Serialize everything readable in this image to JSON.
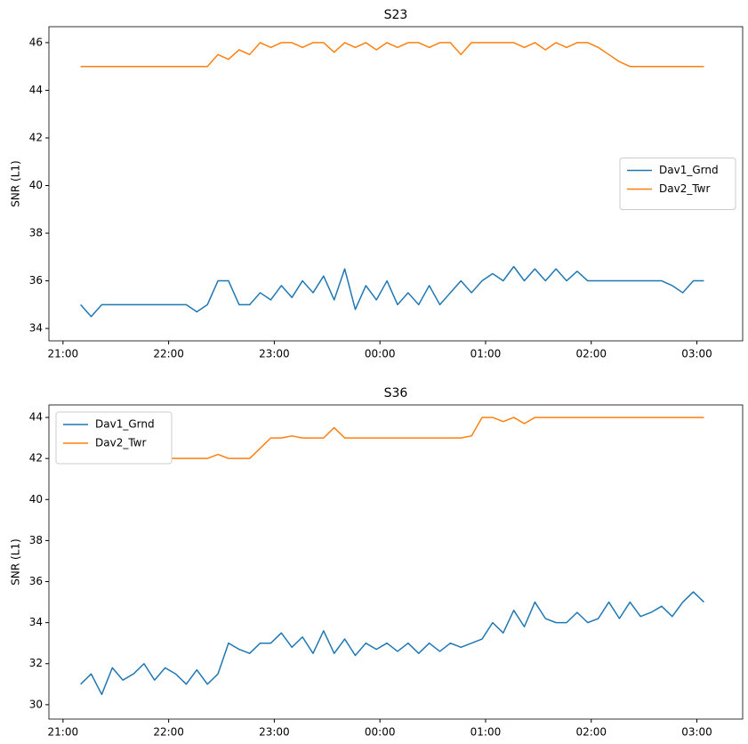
{
  "chart_data": [
    {
      "type": "line",
      "title": "S23",
      "y_label": "SNR (L1)",
      "x": [
        "21:10",
        "21:16",
        "21:22",
        "21:28",
        "21:34",
        "21:40",
        "21:46",
        "21:52",
        "21:58",
        "22:04",
        "22:10",
        "22:16",
        "22:22",
        "22:28",
        "22:34",
        "22:40",
        "22:46",
        "22:52",
        "22:58",
        "23:04",
        "23:10",
        "23:16",
        "23:22",
        "23:28",
        "23:34",
        "23:40",
        "23:46",
        "23:52",
        "23:58",
        "00:04",
        "00:10",
        "00:16",
        "00:22",
        "00:28",
        "00:34",
        "00:40",
        "00:46",
        "00:52",
        "00:58",
        "01:04",
        "01:10",
        "01:16",
        "01:22",
        "01:28",
        "01:34",
        "01:40",
        "01:46",
        "01:52",
        "01:58",
        "02:04",
        "02:10",
        "02:16",
        "02:22",
        "02:28",
        "02:34",
        "02:40",
        "02:46",
        "02:52",
        "02:58",
        "03:04"
      ],
      "series": [
        {
          "name": "Dav1_Grnd",
          "color": "#1f77b4",
          "values": [
            35,
            34.5,
            35,
            35,
            35,
            35,
            35,
            35,
            35,
            35,
            35,
            34.7,
            35,
            36,
            36,
            35,
            35,
            35.5,
            35.2,
            35.8,
            35.3,
            36,
            35.5,
            36.2,
            35.2,
            36.5,
            34.8,
            35.8,
            35.2,
            36,
            35,
            35.5,
            35,
            35.8,
            35,
            35.5,
            36,
            35.5,
            36,
            36.3,
            36,
            36.6,
            36,
            36.5,
            36,
            36.5,
            36,
            36.4,
            36,
            36,
            36,
            36,
            36,
            36,
            36,
            36,
            35.8,
            35.5,
            36,
            36
          ]
        },
        {
          "name": "Dav2_Twr",
          "color": "#ff7f0e",
          "values": [
            45,
            45,
            45,
            45,
            45,
            45,
            45,
            45,
            45,
            45,
            45,
            45,
            45,
            45.5,
            45.3,
            45.7,
            45.5,
            46,
            45.8,
            46,
            46,
            45.8,
            46,
            46,
            45.6,
            46,
            45.8,
            46,
            45.7,
            46,
            45.8,
            46,
            46,
            45.8,
            46,
            46,
            45.5,
            46,
            46,
            46,
            46,
            46,
            45.8,
            46,
            45.7,
            46,
            45.8,
            46,
            46,
            45.8,
            45.5,
            45.2,
            45,
            45,
            45,
            45,
            45,
            45,
            45,
            45
          ]
        }
      ],
      "xlim": [
        "20:52",
        "03:26"
      ],
      "xticks": [
        "21:00",
        "22:00",
        "23:00",
        "00:00",
        "01:00",
        "02:00",
        "03:00"
      ],
      "ylim": [
        33.48,
        46.67
      ],
      "yticks": [
        34,
        36,
        38,
        40,
        42,
        44,
        46
      ],
      "legend": "center-right"
    },
    {
      "type": "line",
      "title": "S36",
      "y_label": "SNR (L1)",
      "x": [
        "21:10",
        "21:16",
        "21:22",
        "21:28",
        "21:34",
        "21:40",
        "21:46",
        "21:52",
        "21:58",
        "22:04",
        "22:10",
        "22:16",
        "22:22",
        "22:28",
        "22:34",
        "22:40",
        "22:46",
        "22:52",
        "22:58",
        "23:04",
        "23:10",
        "23:16",
        "23:22",
        "23:28",
        "23:34",
        "23:40",
        "23:46",
        "23:52",
        "23:58",
        "00:04",
        "00:10",
        "00:16",
        "00:22",
        "00:28",
        "00:34",
        "00:40",
        "00:46",
        "00:52",
        "00:58",
        "01:04",
        "01:10",
        "01:16",
        "01:22",
        "01:28",
        "01:34",
        "01:40",
        "01:46",
        "01:52",
        "01:58",
        "02:04",
        "02:10",
        "02:16",
        "02:22",
        "02:28",
        "02:34",
        "02:40",
        "02:46",
        "02:52",
        "02:58",
        "03:04"
      ],
      "series": [
        {
          "name": "Dav1_Grnd",
          "color": "#1f77b4",
          "values": [
            31,
            31.5,
            30.5,
            31.8,
            31.2,
            31.5,
            32,
            31.2,
            31.8,
            31.5,
            31,
            31.7,
            31,
            31.5,
            33,
            32.7,
            32.5,
            33,
            33,
            33.5,
            32.8,
            33.3,
            32.5,
            33.6,
            32.5,
            33.2,
            32.4,
            33,
            32.7,
            33,
            32.6,
            33,
            32.5,
            33,
            32.6,
            33,
            32.8,
            33,
            33.2,
            34,
            33.5,
            34.6,
            33.8,
            35,
            34.2,
            34,
            34,
            34.5,
            34,
            34.2,
            35,
            34.2,
            35,
            34.3,
            34.5,
            34.8,
            34.3,
            35,
            35.5,
            35
          ]
        },
        {
          "name": "Dav2_Twr",
          "color": "#ff7f0e",
          "values": [
            42,
            42,
            42,
            42,
            42,
            41.9,
            42,
            42,
            42,
            42,
            42,
            42,
            42,
            42.2,
            42,
            42,
            42,
            42.5,
            43,
            43,
            43.1,
            43,
            43,
            43,
            43.5,
            43,
            43,
            43,
            43,
            43,
            43,
            43,
            43,
            43,
            43,
            43,
            43,
            43.1,
            44,
            44,
            43.8,
            44,
            43.7,
            44,
            44,
            44,
            44,
            44,
            44,
            44,
            44,
            44,
            44,
            44,
            44,
            44,
            44,
            44,
            44,
            44
          ]
        }
      ],
      "xlim": [
        "20:52",
        "03:26"
      ],
      "xticks": [
        "21:00",
        "22:00",
        "23:00",
        "00:00",
        "01:00",
        "02:00",
        "03:00"
      ],
      "ylim": [
        29.3,
        44.61
      ],
      "yticks": [
        30,
        32,
        34,
        36,
        38,
        40,
        42,
        44
      ],
      "legend": "upper-left"
    }
  ]
}
